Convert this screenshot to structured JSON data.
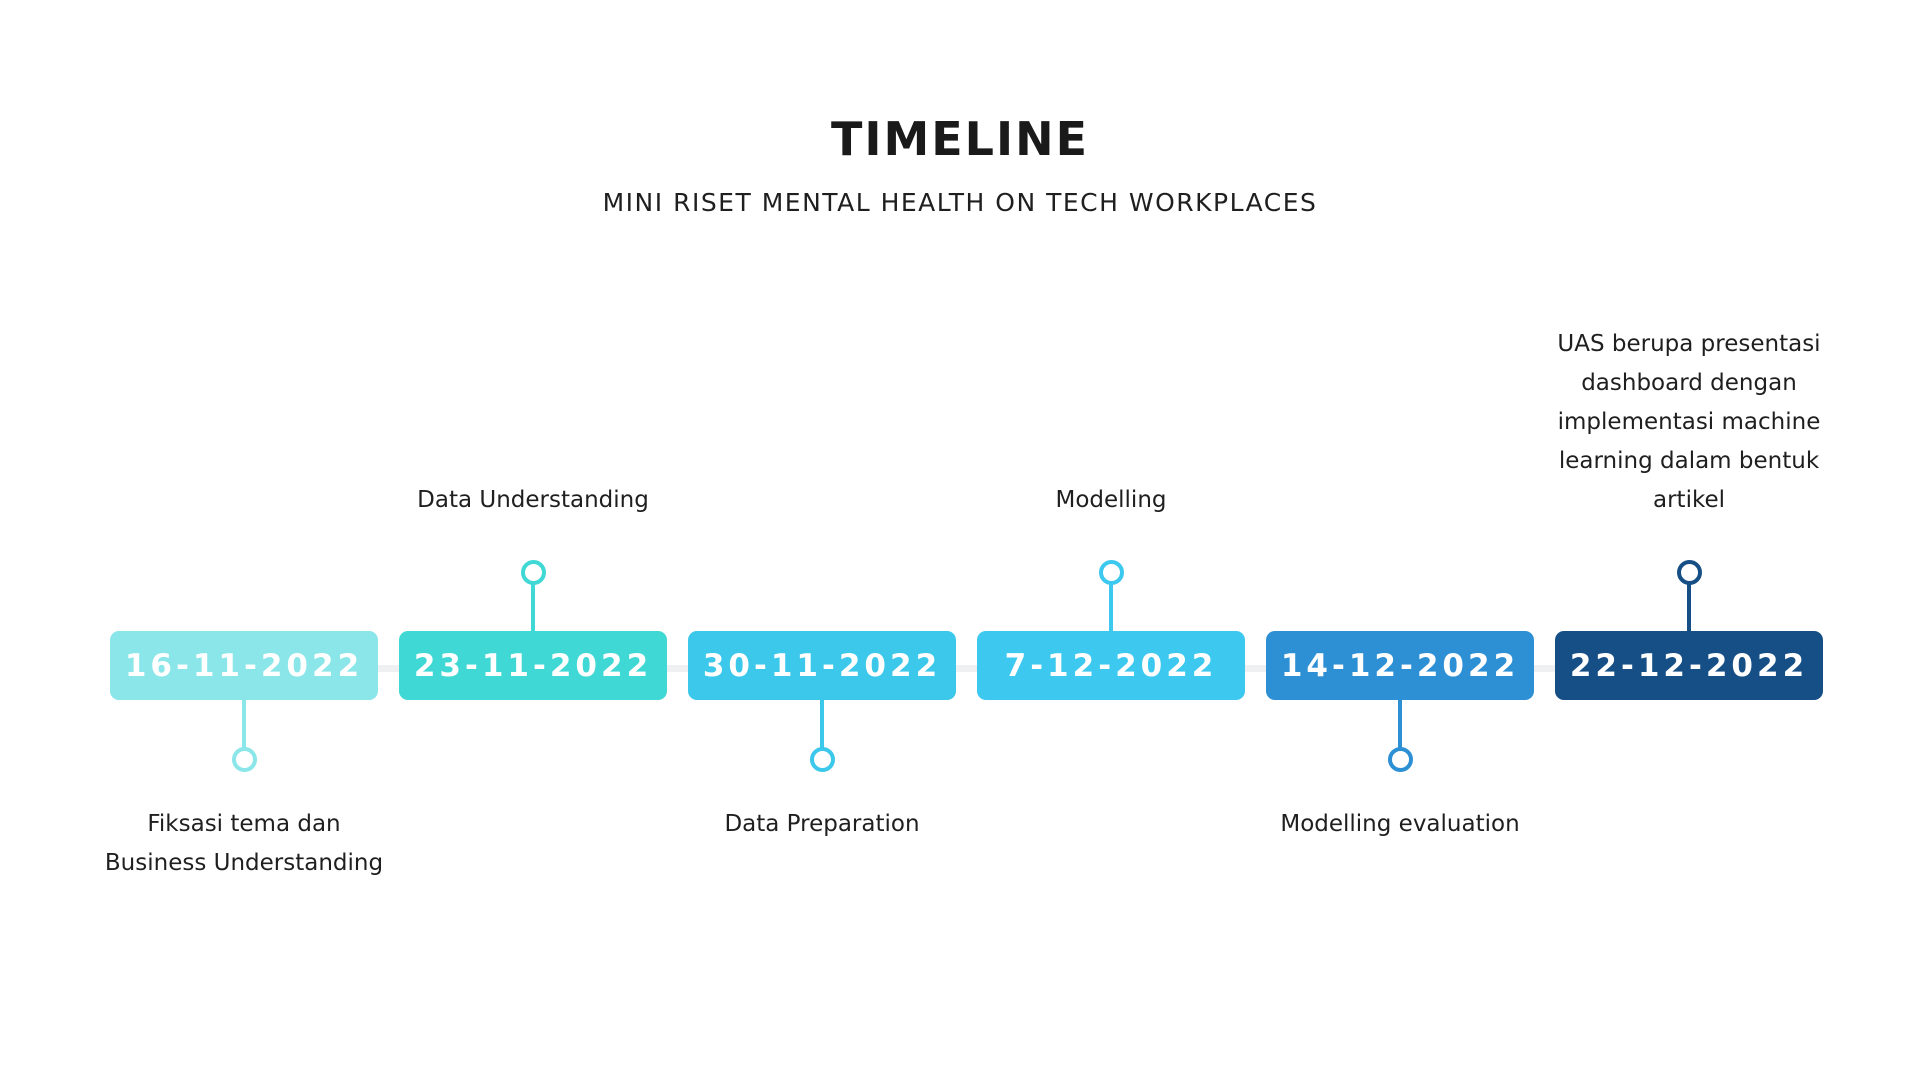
{
  "title": "TIMELINE",
  "subtitle": "MINI RISET MENTAL HEALTH ON TECH WORKPLACES",
  "milestones": [
    {
      "date": "16-11-2022",
      "label": "Fiksasi tema dan Business Understanding",
      "side": "below",
      "color": "#8ae6e8",
      "text_color": "#ffffff"
    },
    {
      "date": "23-11-2022",
      "label": "Data Understanding",
      "side": "above",
      "color": "#3fd8d4",
      "text_color": "#ffffff"
    },
    {
      "date": "30-11-2022",
      "label": "Data Preparation",
      "side": "below",
      "color": "#3cc8ea",
      "text_color": "#ffffff"
    },
    {
      "date": "7-12-2022",
      "label": "Modelling",
      "side": "above",
      "color": "#3cc8ef",
      "text_color": "#ffffff"
    },
    {
      "date": "14-12-2022",
      "label": "Modelling evaluation",
      "side": "below",
      "color": "#2e90d4",
      "text_color": "#ffffff"
    },
    {
      "date": "22-12-2022",
      "label": "UAS berupa presentasi dashboard dengan implementasi machine learning dalam bentuk artikel",
      "side": "above",
      "color": "#164f85",
      "text_color": "#ffffff"
    }
  ]
}
